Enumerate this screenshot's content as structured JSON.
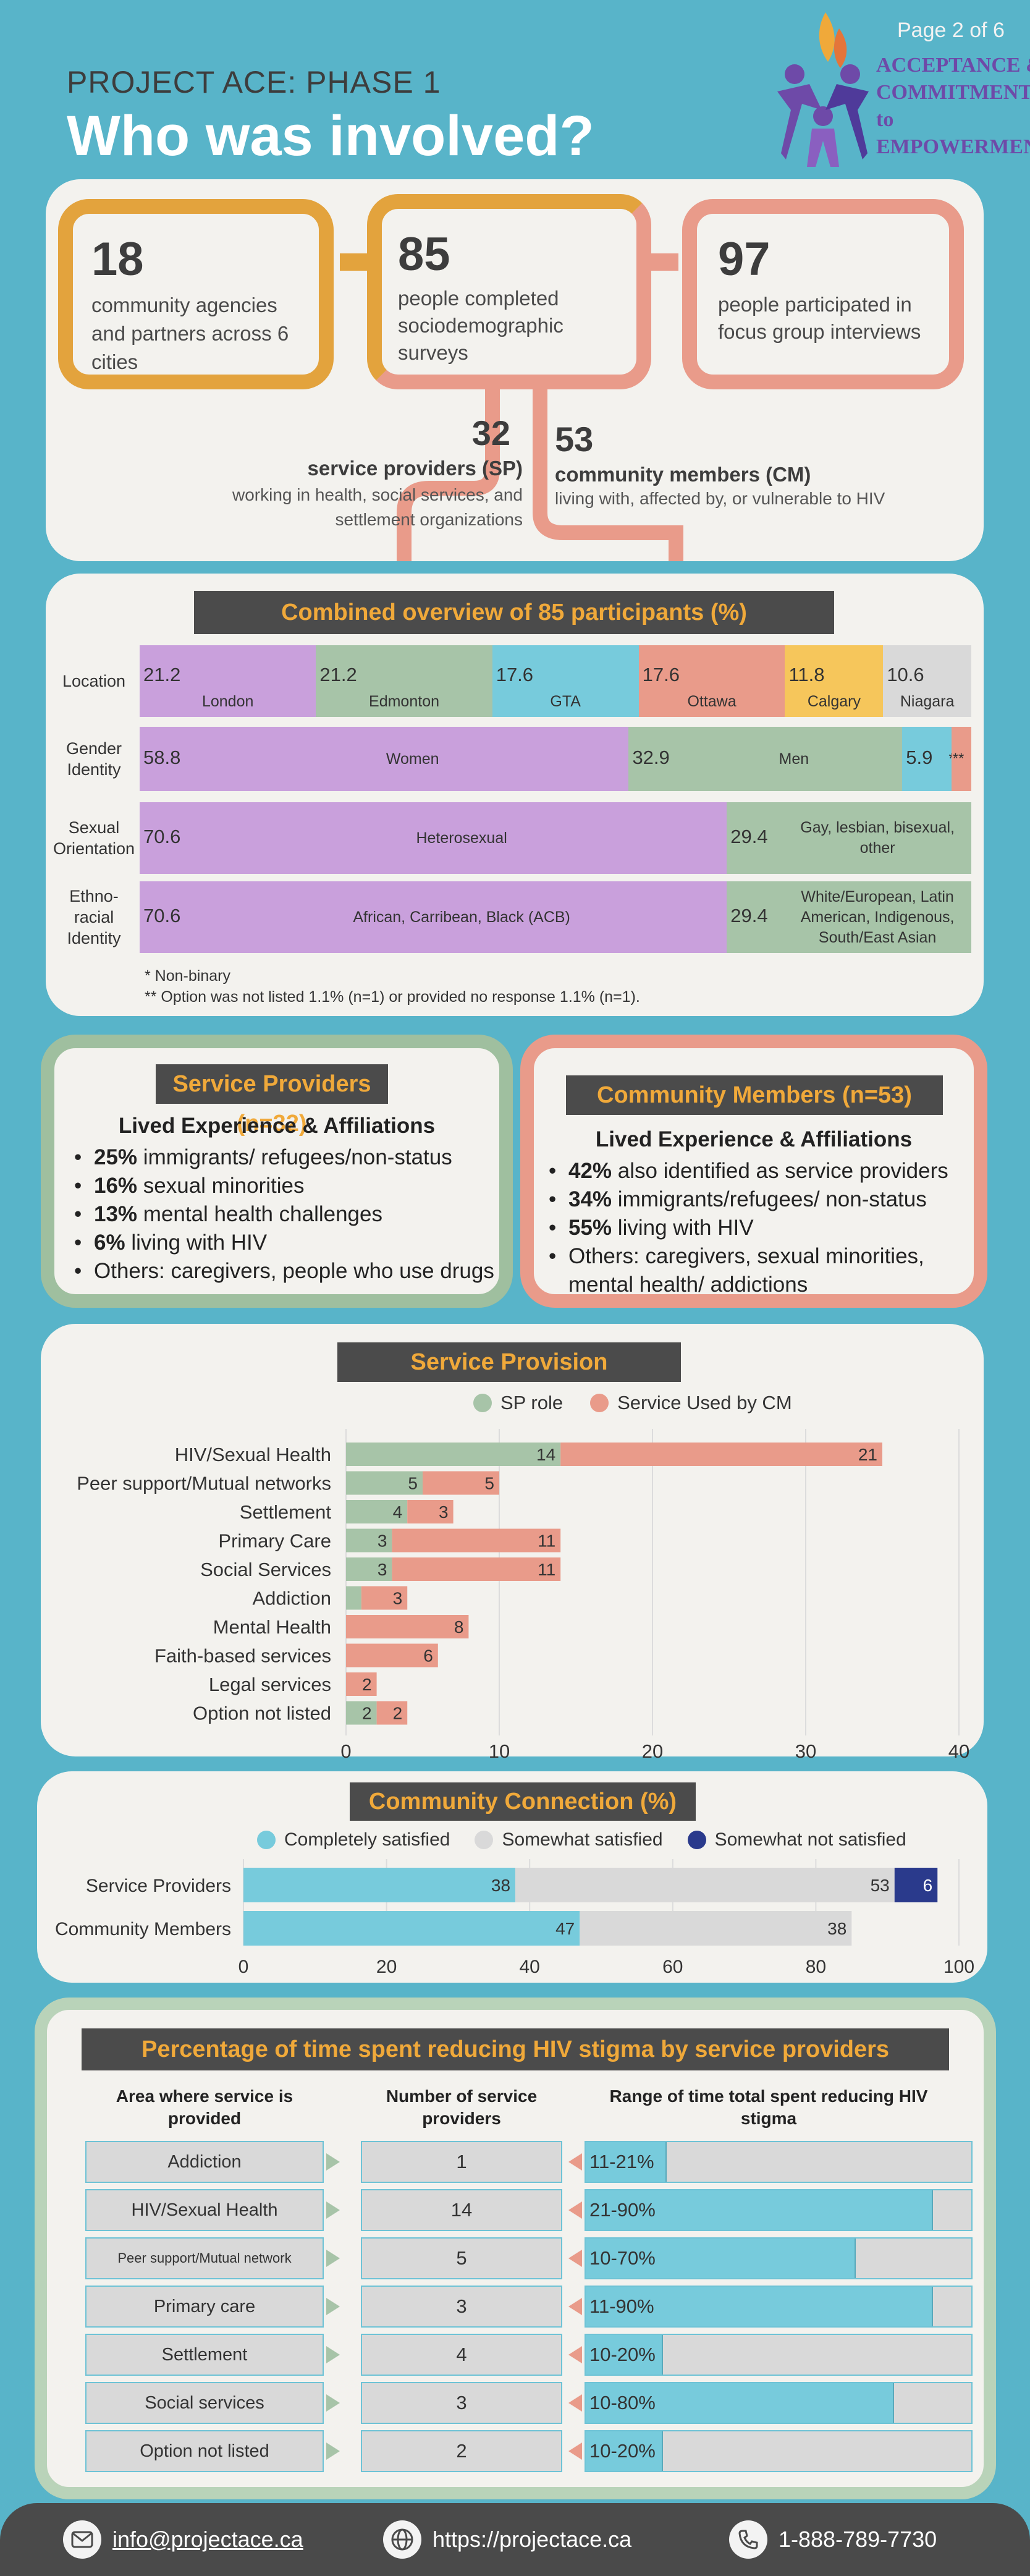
{
  "header": {
    "page_label": "Page 2 of 6",
    "eyebrow": "PROJECT ACE: PHASE 1",
    "title": "Who was involved?",
    "logo_lines": [
      "ACCEPTANCE &",
      "COMMITMENT to",
      "EMPOWERMENT"
    ]
  },
  "stats": {
    "agencies_num": "18",
    "agencies_text": "community agencies and partners across 6 cities",
    "surveys_num": "85",
    "surveys_text": "people completed sociodemographic surveys",
    "focus_num": "97",
    "focus_text": "people participated in focus group interviews",
    "sp_num": "32",
    "sp_title": "service providers (SP)",
    "sp_text": "working in health, social services, and settlement organizations",
    "cm_num": "53",
    "cm_title": "community members (CM)",
    "cm_text": "living with, affected by, or vulnerable to HIV"
  },
  "overview": {
    "title": "Combined overview of 85 participants (%)",
    "rows": [
      {
        "label": "Location",
        "segments": [
          {
            "value": "21.2",
            "name": "London",
            "color": "#c9a0dc"
          },
          {
            "value": "21.2",
            "name": "Edmonton",
            "color": "#a7c4a8"
          },
          {
            "value": "17.6",
            "name": "GTA",
            "color": "#77cbdc"
          },
          {
            "value": "17.6",
            "name": "Ottawa",
            "color": "#e99b8a"
          },
          {
            "value": "11.8",
            "name": "Calgary",
            "color": "#f6c65b"
          },
          {
            "value": "10.6",
            "name": "Niagara",
            "color": "#d9d9d9"
          }
        ]
      },
      {
        "label": "Gender Identity",
        "segments": [
          {
            "value": "58.8",
            "name": "Women",
            "color": "#c9a0dc"
          },
          {
            "value": "32.9",
            "name": "Men",
            "color": "#a7c4a8"
          },
          {
            "value": "5.9",
            "name": "*",
            "color": "#77cbdc"
          },
          {
            "value": "2.4",
            "name": "**",
            "color": "#e99b8a"
          }
        ]
      },
      {
        "label": "Sexual Orientation",
        "segments": [
          {
            "value": "70.6",
            "name": "Heterosexual",
            "color": "#c9a0dc"
          },
          {
            "value": "29.4",
            "name": "Gay, lesbian, bisexual, other",
            "color": "#a7c4a8"
          }
        ]
      },
      {
        "label": "Ethno-racial Identity",
        "segments": [
          {
            "value": "70.6",
            "name": "African, Carribean, Black (ACB)",
            "color": "#c9a0dc"
          },
          {
            "value": "29.4",
            "name": "White/European, Latin American, Indigenous, South/East Asian",
            "color": "#a7c4a8"
          }
        ]
      }
    ],
    "notes": [
      "* Non-binary",
      "** Option was not listed 1.1% (n=1) or provided no response 1.1% (n=1)."
    ]
  },
  "sp_box": {
    "title": "Service Providers (n=32)",
    "subtitle": "Lived Experience & Affiliations",
    "items": [
      {
        "bold": "25%",
        "text": " immigrants/ refugees/non-status"
      },
      {
        "bold": "16%",
        "text": " sexual minorities"
      },
      {
        "bold": "13%",
        "text": " mental health challenges"
      },
      {
        "bold": "6%",
        "text": " living with HIV"
      },
      {
        "bold": "",
        "text": "Others: caregivers, people who use drugs"
      }
    ]
  },
  "cm_box": {
    "title": "Community Members (n=53)",
    "subtitle": "Lived Experience & Affiliations",
    "items": [
      {
        "bold": "42%",
        "text": " also identified as service providers"
      },
      {
        "bold": "34%",
        "text": " immigrants/refugees/ non-status"
      },
      {
        "bold": "55%",
        "text": " living with HIV"
      },
      {
        "bold": "",
        "text": "Others: caregivers, sexual minorities, mental health/ addictions"
      }
    ]
  },
  "chart_data": [
    {
      "type": "bar",
      "orientation": "horizontal",
      "stacked": true,
      "title": "Service Provision",
      "categories": [
        "HIV/Sexual Health",
        "Peer support/Mutual networks",
        "Settlement",
        "Primary Care",
        "Social Services",
        "Addiction",
        "Mental Health",
        "Faith-based services",
        "Legal services",
        "Option not listed"
      ],
      "series": [
        {
          "name": "SP role",
          "color": "#a7c4a8",
          "values": [
            14,
            5,
            4,
            3,
            3,
            1,
            0,
            0,
            0,
            2
          ]
        },
        {
          "name": "Service Used by CM",
          "color": "#e99b8a",
          "values": [
            21,
            5,
            3,
            11,
            11,
            3,
            8,
            6,
            2,
            2
          ]
        }
      ],
      "xlim": [
        0,
        40
      ],
      "xticks": [
        "0",
        "10",
        "20",
        "30",
        "40"
      ],
      "legend": "top",
      "grid": true
    },
    {
      "type": "bar",
      "orientation": "horizontal",
      "stacked": true,
      "title": "Community Connection (%)",
      "categories": [
        "Service Providers",
        "Community Members"
      ],
      "series": [
        {
          "name": "Completely satisfied",
          "color": "#77cbdc",
          "values": [
            38,
            47
          ]
        },
        {
          "name": "Somewhat satisfied",
          "color": "#d9d9d9",
          "values": [
            53,
            38
          ]
        },
        {
          "name": "Somewhat not satisfied",
          "color": "#2a3a8c",
          "values": [
            6,
            0
          ]
        }
      ],
      "xlim": [
        0,
        100
      ],
      "xticks": [
        "0",
        "20",
        "40",
        "60",
        "80",
        "100"
      ],
      "legend": "top",
      "grid": true
    }
  ],
  "stigma": {
    "title": "Percentage of time spent reducing HIV stigma by service providers",
    "col1": "Area where service is provided",
    "col2": "Number of service providers",
    "col3": "Range of time total spent reducing HIV stigma",
    "rows": [
      {
        "area": "Addiction",
        "n": "1",
        "range": "11-21%",
        "fill": 0.21
      },
      {
        "area": "HIV/Sexual Health",
        "n": "14",
        "range": "21-90%",
        "fill": 0.9
      },
      {
        "area": "Peer support/Mutual network",
        "n": "5",
        "range": "10-70%",
        "fill": 0.7
      },
      {
        "area": "Primary care",
        "n": "3",
        "range": "11-90%",
        "fill": 0.9
      },
      {
        "area": "Settlement",
        "n": "4",
        "range": "10-20%",
        "fill": 0.2
      },
      {
        "area": "Social services",
        "n": "3",
        "range": "10-80%",
        "fill": 0.8
      },
      {
        "area": "Option not listed",
        "n": "2",
        "range": "10-20%",
        "fill": 0.2
      }
    ]
  },
  "footer": {
    "email": "info@projectace.ca",
    "web": "https://projectace.ca",
    "phone": "1-888-789-7730"
  }
}
